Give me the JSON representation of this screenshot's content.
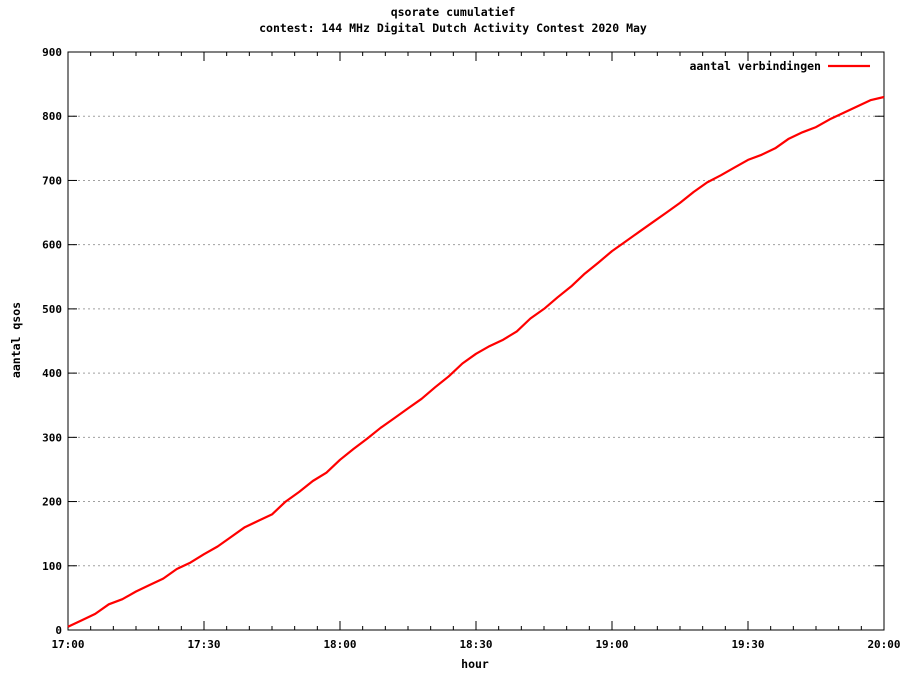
{
  "chart_data": {
    "type": "line",
    "title": "qsorate cumulatief",
    "subtitle": "contest: 144 MHz Digital Dutch Activity Contest  2020 May",
    "xlabel": "hour",
    "ylabel": "aantal qsos",
    "x_tick_labels": [
      "17:00",
      "17:30",
      "18:00",
      "18:30",
      "19:00",
      "19:30",
      "20:00"
    ],
    "x_tick_minutes": [
      0,
      30,
      60,
      90,
      120,
      150,
      180
    ],
    "xlim_minutes": [
      0,
      180
    ],
    "y_ticks": [
      0,
      100,
      200,
      300,
      400,
      500,
      600,
      700,
      800,
      900
    ],
    "ylim": [
      0,
      900
    ],
    "grid": "horizontal dashed",
    "legend_position": "top-right",
    "series": [
      {
        "name": "aantal verbindingen",
        "color": "#ff0000",
        "x_minutes": [
          0,
          3,
          6,
          9,
          12,
          15,
          18,
          21,
          24,
          27,
          30,
          33,
          36,
          39,
          42,
          45,
          48,
          51,
          54,
          57,
          60,
          63,
          66,
          69,
          72,
          75,
          78,
          81,
          84,
          87,
          90,
          93,
          96,
          99,
          102,
          105,
          108,
          111,
          114,
          117,
          120,
          123,
          126,
          129,
          132,
          135,
          138,
          141,
          144,
          147,
          150,
          153,
          156,
          159,
          162,
          165,
          168,
          171,
          174,
          177,
          180
        ],
        "values": [
          5,
          15,
          25,
          40,
          48,
          60,
          70,
          80,
          95,
          105,
          118,
          130,
          145,
          160,
          170,
          180,
          200,
          215,
          232,
          245,
          265,
          282,
          298,
          315,
          330,
          345,
          360,
          378,
          395,
          415,
          430,
          442,
          452,
          465,
          485,
          500,
          518,
          535,
          555,
          572,
          590,
          605,
          620,
          635,
          650,
          665,
          682,
          697,
          708,
          720,
          732,
          740,
          750,
          765,
          775,
          783,
          795,
          805,
          815,
          825,
          830
        ]
      }
    ]
  }
}
